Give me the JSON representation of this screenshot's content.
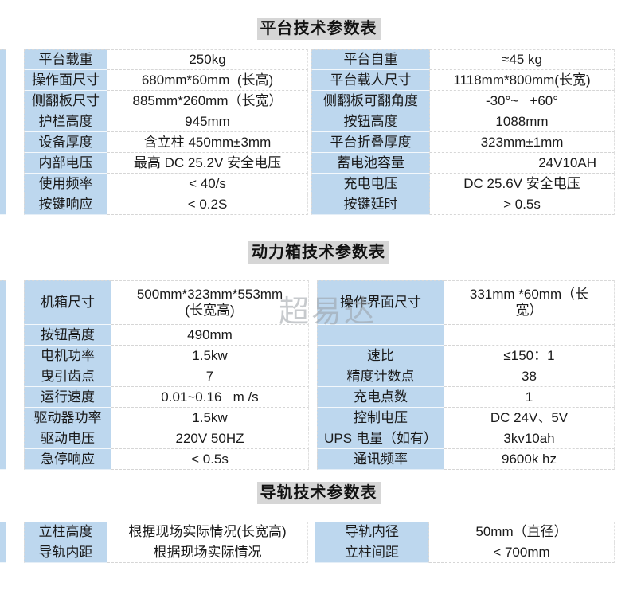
{
  "colors": {
    "label_bg": "#bdd7ee",
    "title_bg": "#d6d6d6",
    "page_bg": "#ffffff",
    "watermark_color": "#9aa0a6"
  },
  "watermark": {
    "text": "超易达"
  },
  "tables": [
    {
      "title": "平台技术参数表",
      "rows": [
        {
          "cells": [
            "平台载重",
            "250kg",
            "平台自重",
            "≈45 kg"
          ]
        },
        {
          "cells": [
            "操作面尺寸",
            "680mm*60mm  (长高)",
            "平台载人尺寸",
            "1118mm*800mm(长宽)"
          ]
        },
        {
          "cells": [
            "侧翻板尺寸",
            "885mm*260mm（长宽）",
            "侧翻板可翻角度",
            "-30°~   +60°"
          ]
        },
        {
          "cells": [
            "护栏高度",
            "945mm",
            "按钮高度",
            "1088mm"
          ]
        },
        {
          "cells": [
            "设备厚度",
            "含立柱 450mm±3mm",
            "平台折叠厚度",
            "323mm±1mm"
          ]
        },
        {
          "cells": [
            "内部电压",
            "最高 DC 25.2V 安全电压",
            "蓄电池容量",
            "24V10AH"
          ],
          "align_right": 3
        },
        {
          "cells": [
            "使用频率",
            "< 40/s",
            "充电电压",
            "DC 25.6V 安全电压"
          ]
        },
        {
          "cells": [
            "按键响应",
            "< 0.2S",
            "按键延时",
            "> 0.5s"
          ]
        }
      ]
    },
    {
      "title": "动力箱技术参数表",
      "rows": [
        {
          "cells": [
            "机箱尺寸",
            "500mm*323mm*553mm\n(长宽高)",
            "操作界面尺寸",
            "331mm *60mm（长\n宽）"
          ],
          "tall": true
        },
        {
          "cells": [
            "按钮高度",
            "490mm",
            "",
            ""
          ]
        },
        {
          "cells": [
            "电机功率",
            "1.5kw",
            "速比",
            "≤150：1"
          ]
        },
        {
          "cells": [
            "曳引齿点",
            "7",
            "精度计数点",
            "38"
          ]
        },
        {
          "cells": [
            "运行速度",
            "0.01~0.16   m /s",
            "充电点数",
            "1"
          ]
        },
        {
          "cells": [
            "驱动器功率",
            "1.5kw",
            "控制电压",
            "DC 24V、5V"
          ]
        },
        {
          "cells": [
            "驱动电压",
            "220V 50HZ",
            "UPS 电量（如有）",
            "3kv10ah"
          ]
        },
        {
          "cells": [
            "急停响应",
            "< 0.5s",
            "通讯频率",
            "9600k hz"
          ]
        }
      ]
    },
    {
      "title": "导轨技术参数表",
      "rows": [
        {
          "cells": [
            "立柱高度",
            "根据现场实际情况(长宽高)",
            "导轨内径",
            "50mm（直径）"
          ]
        },
        {
          "cells": [
            "导轨内距",
            "根据现场实际情况",
            "立柱间距",
            "< 700mm"
          ]
        }
      ]
    }
  ]
}
